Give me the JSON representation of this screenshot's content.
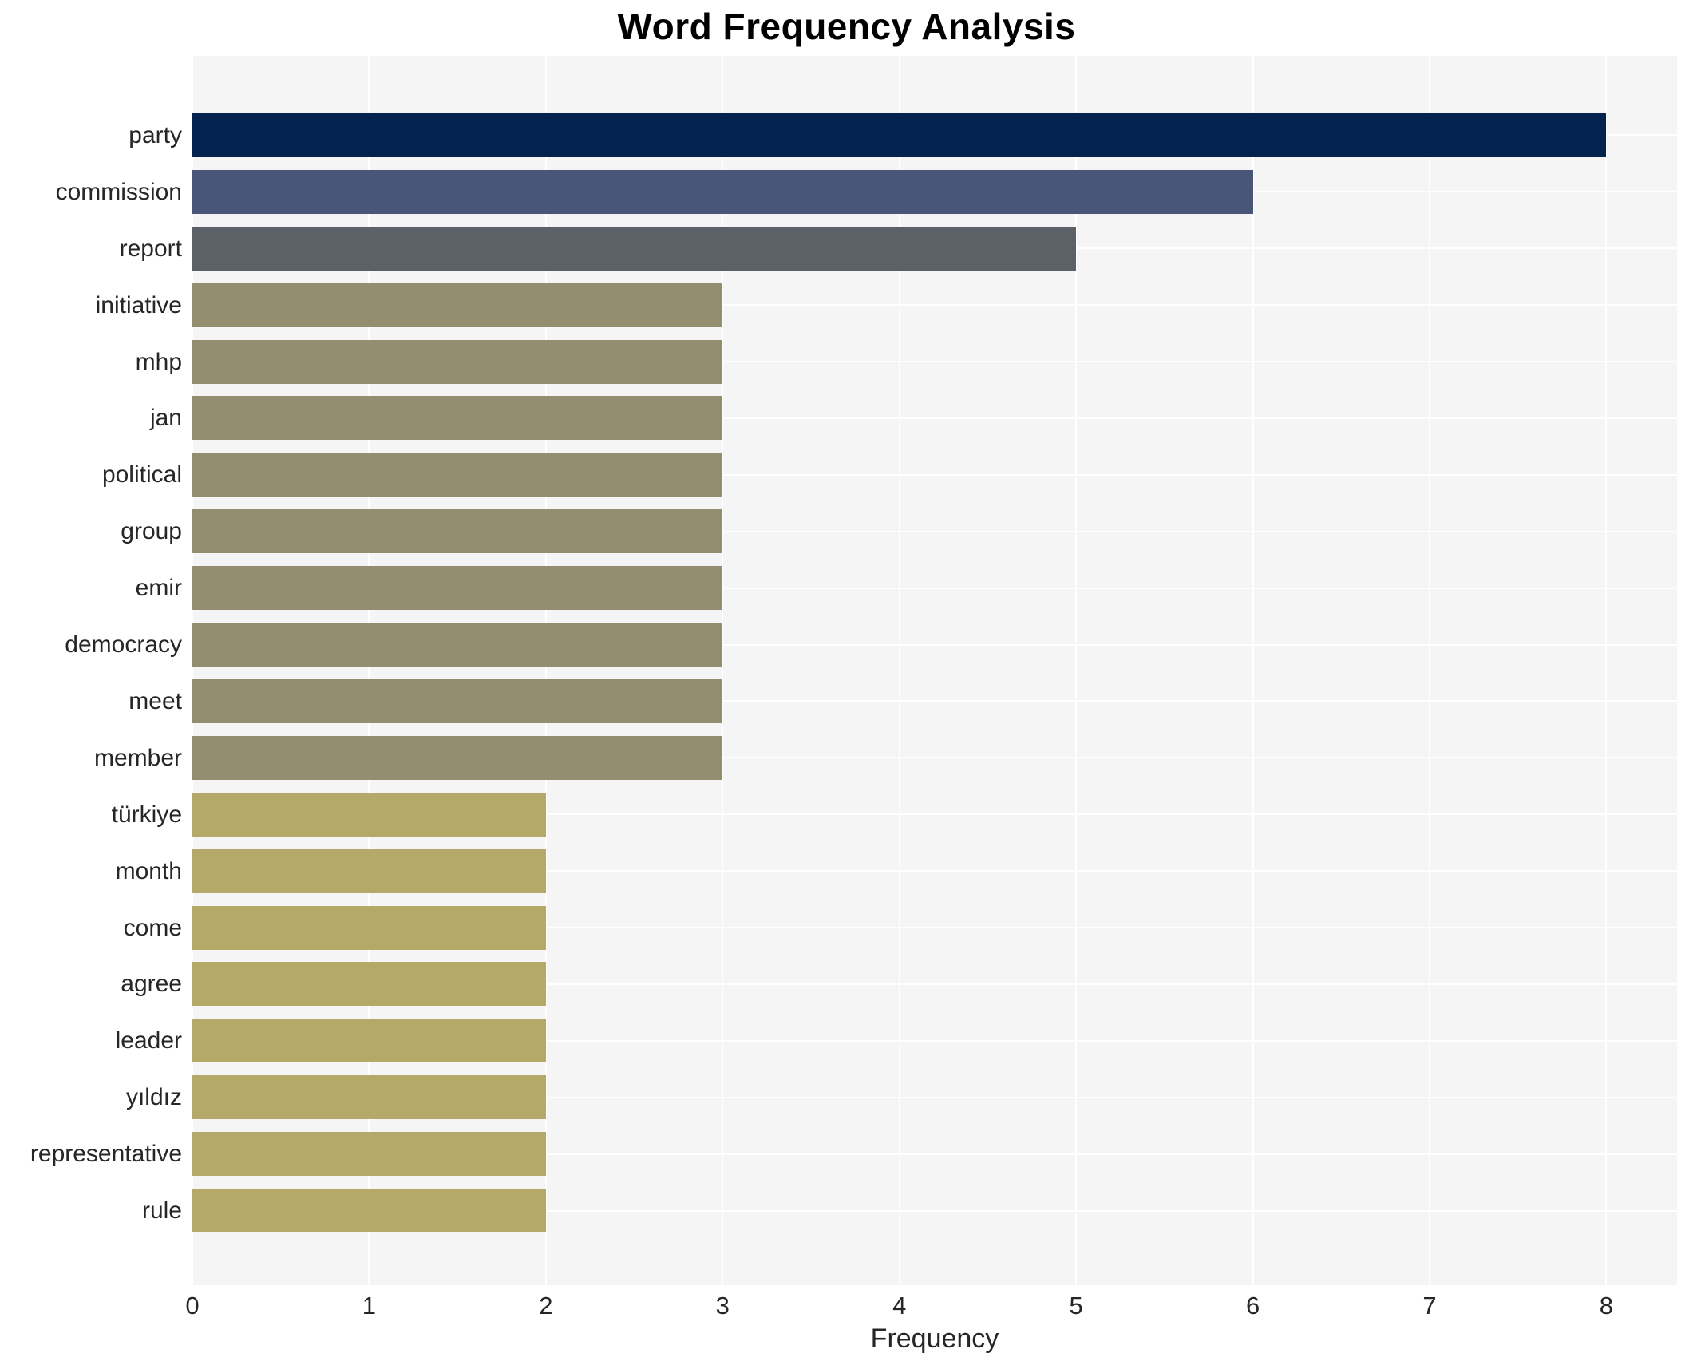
{
  "figure": {
    "title": "Word Frequency Analysis",
    "background_color": "#ffffff",
    "plot_background_color": "#f5f5f6",
    "grid_color": "#ffffff",
    "label_color": "#262626"
  },
  "chart_data": {
    "type": "bar",
    "orientation": "horizontal",
    "title": "Word Frequency Analysis",
    "xlabel": "Frequency",
    "ylabel": "",
    "categories": [
      "party",
      "commission",
      "report",
      "initiative",
      "mhp",
      "jan",
      "political",
      "group",
      "emir",
      "democracy",
      "meet",
      "member",
      "türkiye",
      "month",
      "come",
      "agree",
      "leader",
      "yıldız",
      "representative",
      "rule"
    ],
    "values": [
      8,
      6,
      5,
      3,
      3,
      3,
      3,
      3,
      3,
      3,
      3,
      3,
      2,
      2,
      2,
      2,
      2,
      2,
      2,
      2
    ],
    "bar_colors": [
      "#04234e",
      "#495677",
      "#5c6067",
      "#948e71",
      "#948e71",
      "#948e71",
      "#948e71",
      "#948e71",
      "#948e71",
      "#948e71",
      "#948e71",
      "#948e71",
      "#b5a96a",
      "#b5a96a",
      "#b5a96a",
      "#b5a96a",
      "#b5a96a",
      "#b5a96a",
      "#b5a96a",
      "#b5a96a"
    ],
    "xticks": [
      0,
      1,
      2,
      3,
      4,
      5,
      6,
      7,
      8
    ],
    "xlim": [
      0,
      8.4
    ],
    "grid": true,
    "legend": false
  }
}
